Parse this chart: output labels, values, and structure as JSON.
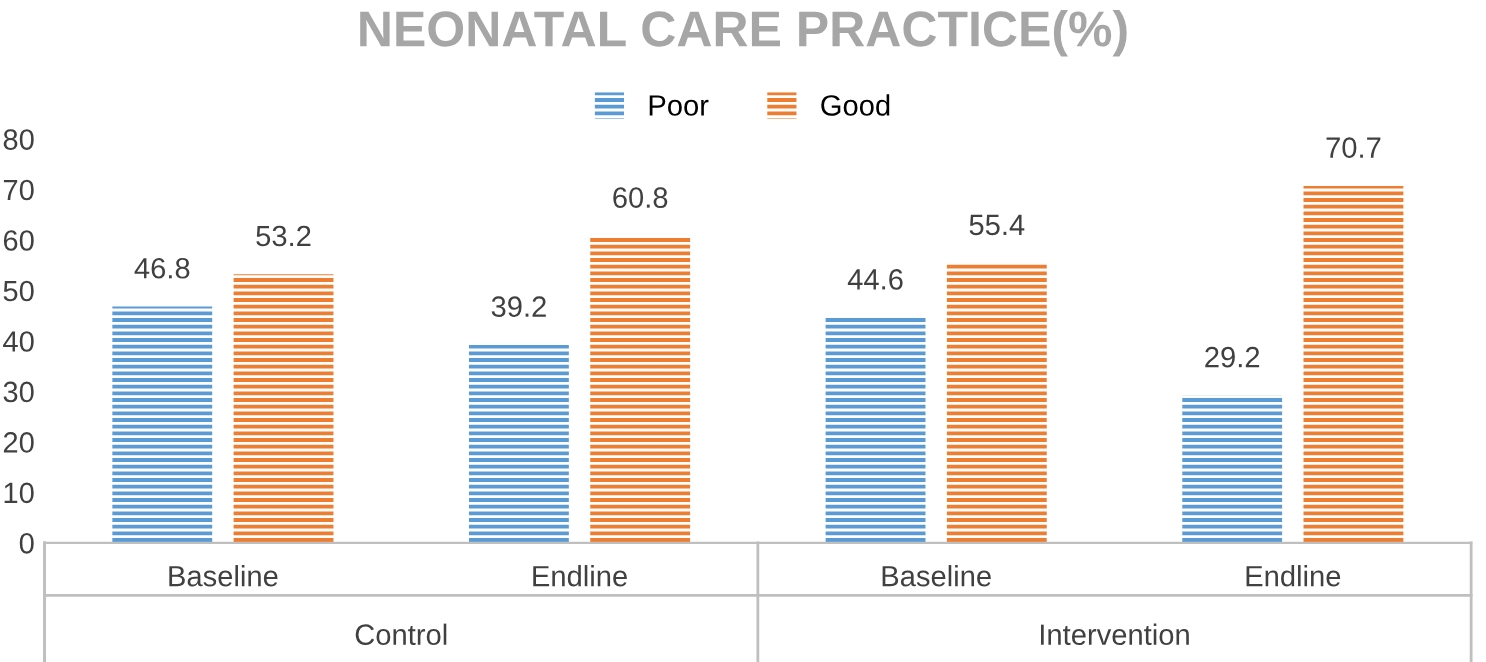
{
  "chart_data": {
    "type": "bar",
    "title": "NEONATAL CARE PRACTICE(%)",
    "categories": [
      "Baseline",
      "Endline",
      "Baseline",
      "Endline"
    ],
    "series": [
      {
        "name": "Poor",
        "color": "#5b9bd5",
        "values": [
          46.8,
          39.2,
          44.6,
          29.2
        ]
      },
      {
        "name": "Good",
        "color": "#ed7d31",
        "values": [
          53.2,
          60.8,
          55.4,
          70.7
        ]
      }
    ],
    "annotations": [
      "Control",
      "Intervention"
    ],
    "ylim": [
      0,
      80
    ],
    "yticks": [
      0,
      10,
      20,
      30,
      40,
      50,
      60,
      70,
      80
    ],
    "data_labels": true,
    "legend": "top",
    "grid": false
  }
}
